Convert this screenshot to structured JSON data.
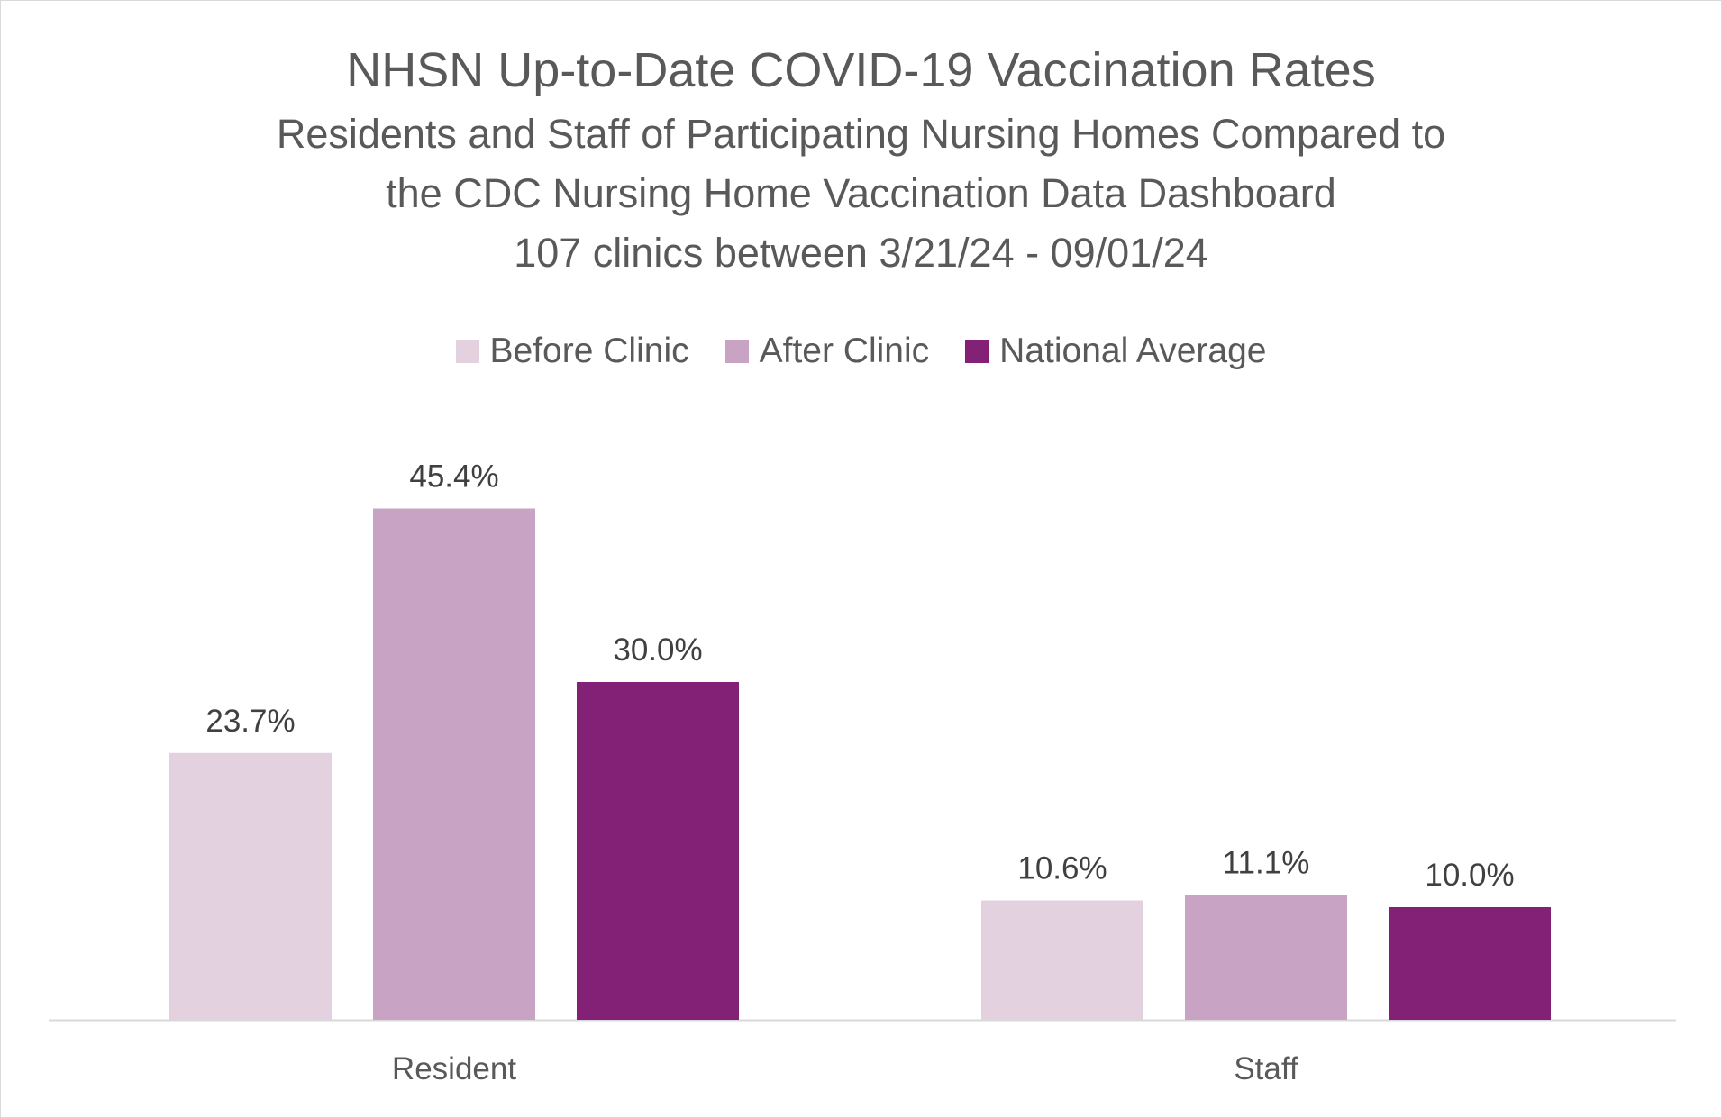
{
  "chart_data": {
    "type": "bar",
    "title": "NHSN Up-to-Date COVID-19 Vaccination Rates",
    "subtitle_lines": [
      "Residents and Staff of Participating Nursing Homes Compared to",
      "the CDC Nursing Home Vaccination Data Dashboard",
      "107 clinics between 3/21/24 - 09/01/24"
    ],
    "categories": [
      "Resident",
      "Staff"
    ],
    "series": [
      {
        "name": "Before Clinic",
        "values": [
          23.7,
          10.6
        ],
        "labels": [
          "23.7%",
          "10.6%"
        ],
        "color": "#e4d1e0"
      },
      {
        "name": "After Clinic",
        "values": [
          45.4,
          11.1
        ],
        "labels": [
          "45.4%",
          "11.1%"
        ],
        "color": "#c8a3c3"
      },
      {
        "name": "National Average",
        "values": [
          30.0,
          10.0
        ],
        "labels": [
          "30.0%",
          "10.0%"
        ],
        "color": "#832177"
      }
    ],
    "xlabel": "",
    "ylabel": "",
    "ylim": [
      0,
      50
    ],
    "grid": false,
    "legend_position": "top"
  }
}
